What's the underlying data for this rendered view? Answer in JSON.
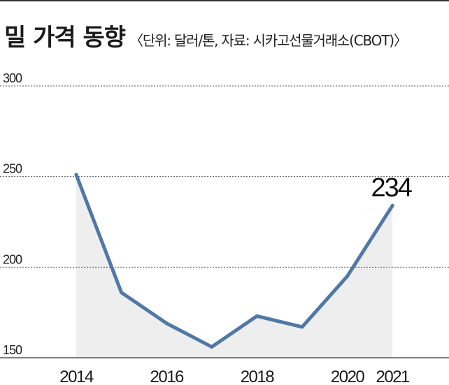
{
  "header": {
    "title": "밀 가격 동향",
    "subtitle": "〈단위: 달러/톤, 자료: 시카고선물거래소(CBOT)〉"
  },
  "chart_data": {
    "type": "area",
    "title": "밀 가격 동향",
    "subtitle": "〈단위: 달러/톤, 자료: 시카고선물거래소(CBOT)〉",
    "x": [
      2014,
      2015,
      2016,
      2017,
      2018,
      2019,
      2020,
      2021
    ],
    "series": [
      {
        "values": [
          251,
          186,
          169,
          156,
          173,
          167,
          195,
          234
        ]
      }
    ],
    "xticks": [
      "2014",
      "2016",
      "2018",
      "2020",
      "2021"
    ],
    "yticks": [
      "300",
      "250",
      "200",
      "150"
    ],
    "ylim": [
      150,
      300
    ],
    "grid": "horizontal dashed",
    "annotations": [
      {
        "x": 2021,
        "text": "234"
      }
    ],
    "colors": {
      "line": "#4f78a6",
      "fill": "#eeeeee",
      "grid": "#555555",
      "axis": "#333333"
    }
  }
}
